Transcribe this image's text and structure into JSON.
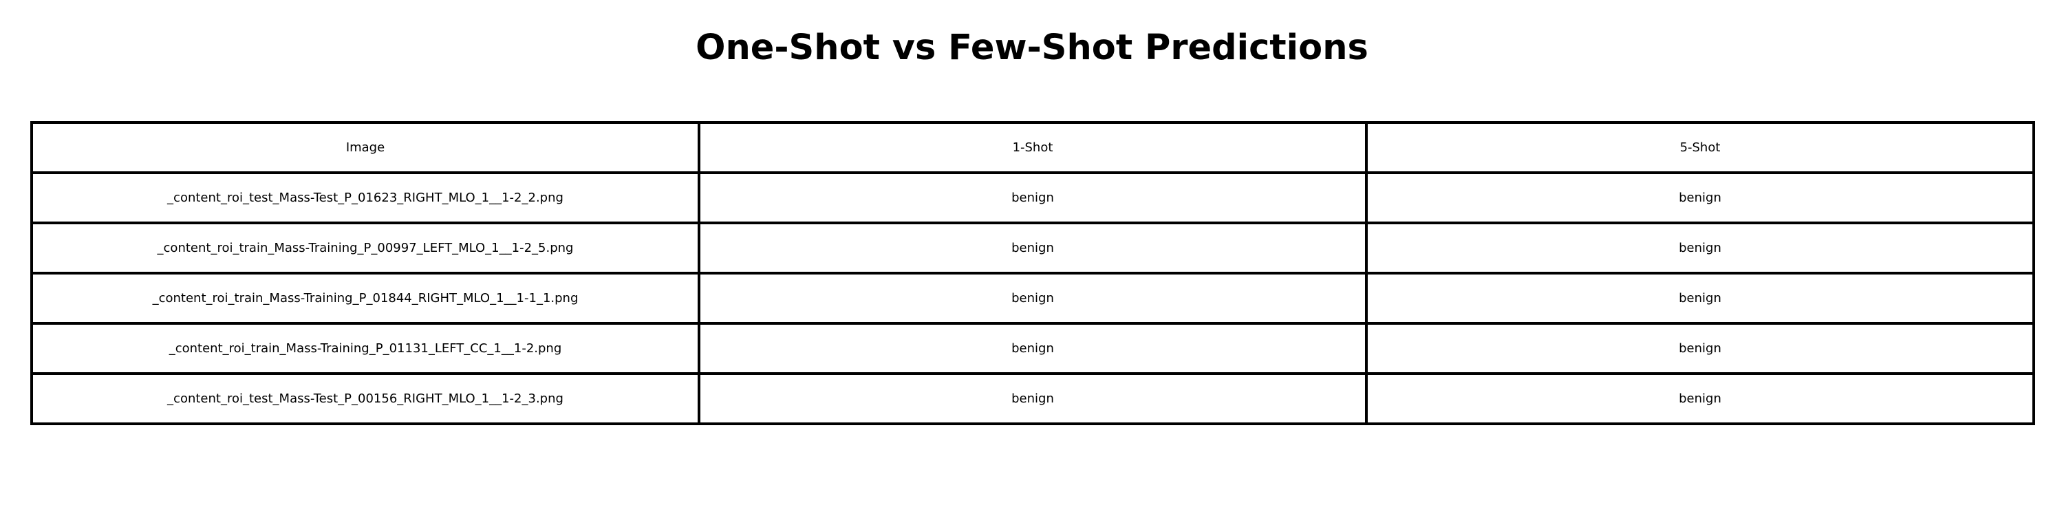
{
  "chart_data": {
    "type": "table",
    "title": "One-Shot vs Few-Shot Predictions",
    "columns": [
      "Image",
      "1-Shot",
      "5-Shot"
    ],
    "rows": [
      [
        "_content_roi_test_Mass-Test_P_01623_RIGHT_MLO_1__1-2_2.png",
        "benign",
        "benign"
      ],
      [
        "_content_roi_train_Mass-Training_P_00997_LEFT_MLO_1__1-2_5.png",
        "benign",
        "benign"
      ],
      [
        "_content_roi_train_Mass-Training_P_01844_RIGHT_MLO_1__1-1_1.png",
        "benign",
        "benign"
      ],
      [
        "_content_roi_train_Mass-Training_P_01131_LEFT_CC_1__1-2.png",
        "benign",
        "benign"
      ],
      [
        "_content_roi_test_Mass-Test_P_00156_RIGHT_MLO_1__1-2_3.png",
        "benign",
        "benign"
      ]
    ],
    "border_color": "#000000",
    "background_color": "#ffffff"
  }
}
